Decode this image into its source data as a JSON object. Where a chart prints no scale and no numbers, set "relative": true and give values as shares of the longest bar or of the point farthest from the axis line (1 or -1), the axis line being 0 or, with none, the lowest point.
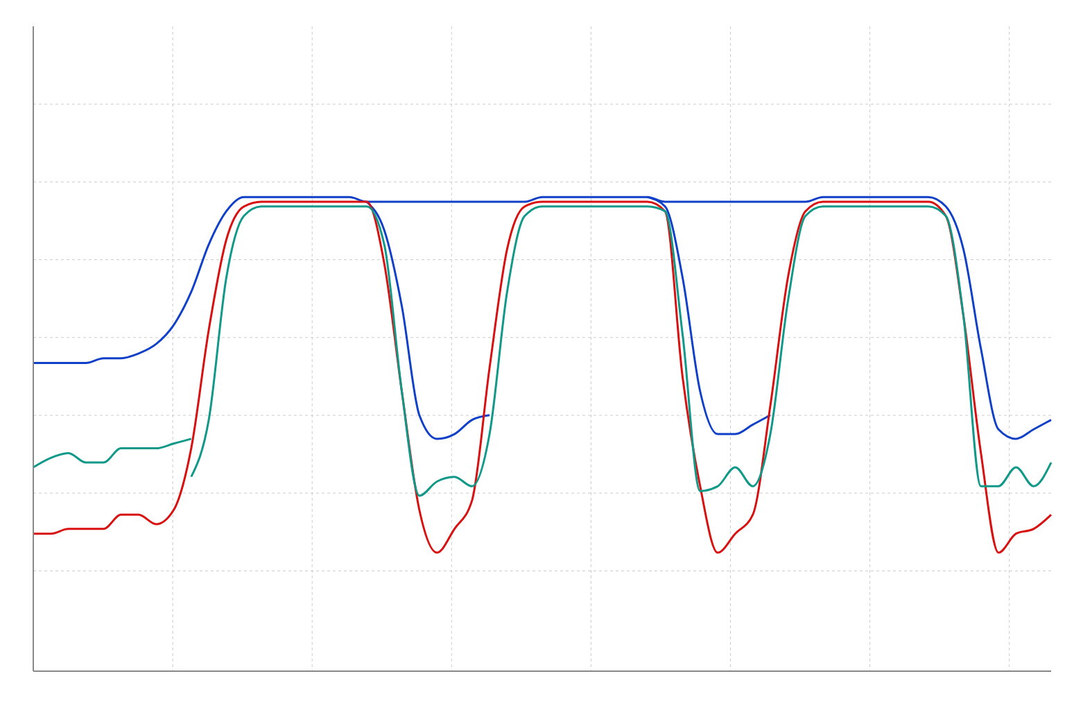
{
  "chart_data": {
    "type": "line",
    "relative": true,
    "grid": true,
    "marker": "none",
    "line_style": "solid",
    "categories": [
      null,
      null,
      null,
      null,
      null,
      null,
      null,
      null,
      null,
      null,
      null,
      null,
      null,
      null,
      null,
      null,
      null,
      null,
      null,
      null,
      null,
      null,
      null,
      null,
      null,
      null,
      null,
      null,
      null,
      null,
      null,
      null,
      null,
      null,
      null,
      null,
      null,
      null,
      null,
      null,
      null,
      null,
      null,
      null,
      null,
      null,
      null,
      null,
      null,
      null,
      null,
      null,
      null,
      null,
      null,
      null,
      null,
      null,
      null
    ],
    "series": [
      {
        "color": "#1040c8",
        "values": [
          0.65,
          0.65,
          0.65,
          0.65,
          0.66,
          0.66,
          0.67,
          0.69,
          0.73,
          0.8,
          0.9,
          0.97,
          1.0,
          1.0,
          1.0,
          1.0,
          1.0,
          1.0,
          1.0,
          0.99,
          0.99,
          0.99,
          0.99,
          0.99,
          0.99,
          0.99,
          0.99,
          0.99,
          0.99,
          1.0,
          1.0,
          1.0,
          1.0,
          1.0,
          1.0,
          1.0,
          0.99,
          0.99,
          0.99,
          0.99,
          0.99,
          0.99,
          0.99,
          0.99,
          0.99,
          1.0,
          1.0,
          1.0,
          1.0,
          1.0,
          1.0,
          1.0,
          0.98,
          0.89,
          0.68,
          0.51,
          0.49,
          0.51,
          0.53
        ]
      },
      {
        "color": "#1040c8",
        "values": [
          null,
          null,
          null,
          null,
          null,
          null,
          null,
          null,
          null,
          null,
          null,
          null,
          null,
          null,
          null,
          null,
          null,
          null,
          null,
          0.99,
          0.93,
          0.77,
          0.54,
          0.49,
          0.5,
          0.53,
          0.54,
          null,
          null,
          null,
          null,
          null,
          null,
          null,
          null,
          1.0,
          0.98,
          0.83,
          0.59,
          0.5,
          0.5,
          0.52,
          0.54,
          null,
          null,
          null,
          null,
          null,
          null,
          null,
          null,
          null,
          null,
          null,
          null,
          null,
          null,
          null,
          null
        ]
      },
      {
        "color": "#d81010",
        "values": [
          0.29,
          0.29,
          0.3,
          0.3,
          0.3,
          0.33,
          0.33,
          0.31,
          0.34,
          0.47,
          0.72,
          0.91,
          0.98,
          0.99,
          0.99,
          0.99,
          0.99,
          0.99,
          0.99,
          0.99,
          0.86,
          0.59,
          0.34,
          0.25,
          0.3,
          0.36,
          0.64,
          0.89,
          0.98,
          0.99,
          0.99,
          0.99,
          0.99,
          0.99,
          0.99,
          0.99,
          0.97,
          0.62,
          0.39,
          0.25,
          0.29,
          0.33,
          0.56,
          0.83,
          0.97,
          0.99,
          0.99,
          0.99,
          0.99,
          0.99,
          0.99,
          0.99,
          0.96,
          0.75,
          0.46,
          0.25,
          0.29,
          0.3,
          0.33
        ]
      },
      {
        "color": "#109888",
        "values": [
          0.43,
          0.45,
          0.46,
          0.44,
          0.44,
          0.47,
          0.47,
          0.47,
          0.48,
          0.49,
          null,
          null,
          null,
          null,
          null,
          null,
          null,
          null,
          null,
          null,
          null,
          null,
          null,
          null,
          null,
          null,
          null,
          null,
          null,
          null,
          null,
          null,
          null,
          null,
          null,
          null,
          null,
          null,
          null,
          null,
          null,
          null,
          null,
          null,
          null,
          null,
          null,
          null,
          null,
          null,
          null,
          null,
          null,
          null,
          null,
          null,
          null,
          null,
          null
        ]
      },
      {
        "color": "#109888",
        "values": [
          null,
          null,
          null,
          null,
          null,
          null,
          null,
          null,
          null,
          0.41,
          0.53,
          0.83,
          0.96,
          0.98,
          0.98,
          0.98,
          0.98,
          0.98,
          0.98,
          0.98,
          0.9,
          0.59,
          0.37,
          0.4,
          0.41,
          0.39,
          0.5,
          0.8,
          0.96,
          0.98,
          0.98,
          0.98,
          0.98,
          0.98,
          0.98,
          0.98,
          0.97,
          0.71,
          0.38,
          0.39,
          0.43,
          0.39,
          0.5,
          0.78,
          0.96,
          0.98,
          0.98,
          0.98,
          0.98,
          0.98,
          0.98,
          0.98,
          0.96,
          0.75,
          0.39,
          0.39,
          0.43,
          0.39,
          0.44
        ]
      }
    ]
  }
}
